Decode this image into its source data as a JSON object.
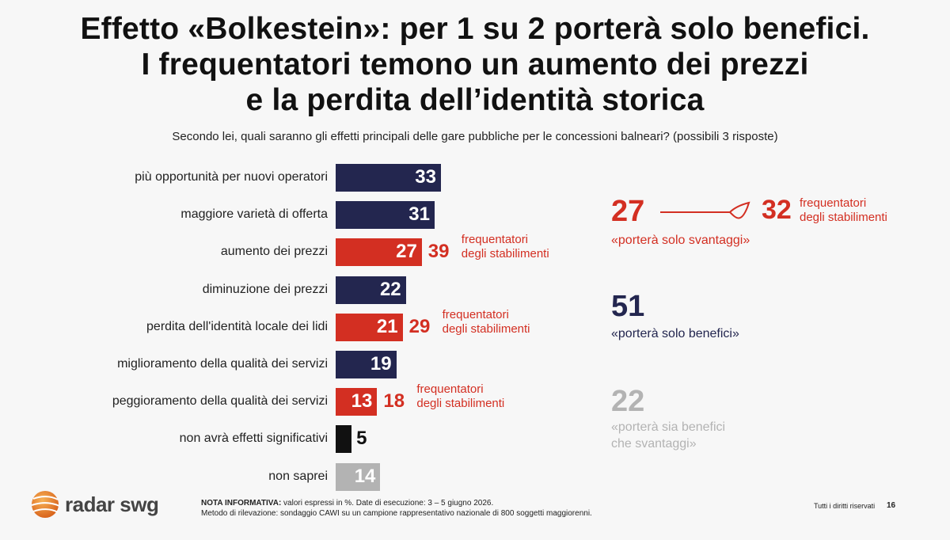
{
  "title_lines": [
    "Effetto «Bolkestein»: per 1 su 2 porterà solo benefici.",
    "I frequentatori temono un aumento dei prezzi",
    "e la perdita dell’identità storica"
  ],
  "subtitle": "Secondo lei, quali saranno gli effetti principali delle gare pubbliche per le concessioni balneari? (possibili 3 risposte)",
  "colors": {
    "navy": "#23264f",
    "red": "#d32f22",
    "black": "#111111",
    "gray": "#b3b3b3"
  },
  "chart_data": {
    "type": "bar",
    "orientation": "horizontal",
    "unit": "%",
    "categories": [
      "più opportunità per nuovi operatori",
      "maggiore varietà di offerta",
      "aumento dei prezzi",
      "diminuzione dei prezzi",
      "perdita dell'identità locale dei lidi",
      "miglioramento della qualità dei servizi",
      "peggioramento della qualità dei servizi",
      "non avrà effetti significativi",
      "non saprei"
    ],
    "values": [
      33,
      31,
      27,
      22,
      21,
      19,
      13,
      5,
      14
    ],
    "bar_colors": [
      "navy",
      "navy",
      "red",
      "navy",
      "red",
      "navy",
      "red",
      "black",
      "gray"
    ],
    "frequentatori": [
      {
        "row": 2,
        "value": 39,
        "label_lines": [
          "frequentatori",
          "degli stabilimenti"
        ]
      },
      {
        "row": 4,
        "value": 29,
        "label_lines": [
          "frequentatori",
          "degli stabilimenti"
        ]
      },
      {
        "row": 6,
        "value": 18,
        "label_lines": [
          "frequentatori",
          "degli stabilimenti"
        ]
      }
    ]
  },
  "summary": {
    "svantaggi": {
      "value": "27",
      "label": "«porterà solo svantaggi»",
      "freq_value": "32",
      "freq_label_lines": [
        "frequentatori",
        "degli stabilimenti"
      ]
    },
    "benefici": {
      "value": "51",
      "label": "«porterà solo benefici»"
    },
    "entrambi": {
      "value": "22",
      "label_lines": [
        "«porterà sia benefici",
        "che svantaggi»"
      ]
    }
  },
  "logo": {
    "text": "radar swg"
  },
  "note": {
    "bold": "NOTA INFORMATIVA:",
    "line1": " valori espressi in %. Date di esecuzione: 3 – 5 giugno 2026.",
    "line2": "Metodo di rilevazione: sondaggio CAWI su un campione rappresentativo nazionale di 800 soggetti maggiorenni."
  },
  "rights": "Tutti i diritti riservati",
  "page_number": "16"
}
